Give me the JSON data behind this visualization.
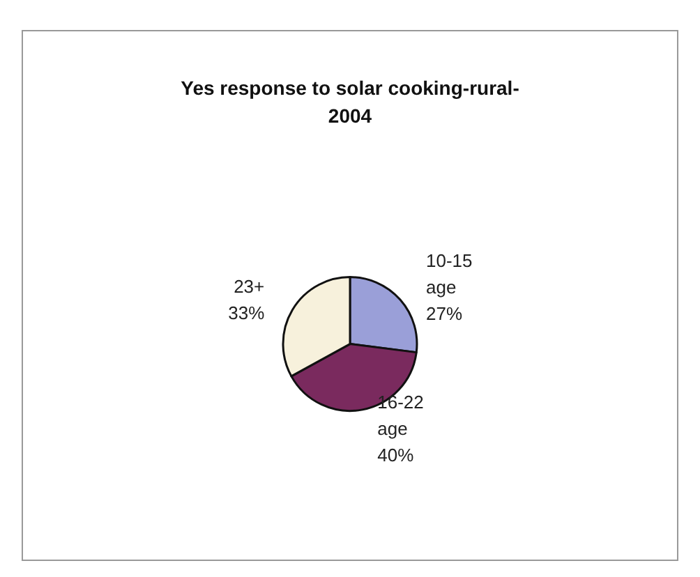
{
  "chart_data": {
    "type": "pie",
    "title": "Yes response to solar cooking-rural-\n2004",
    "categories": [
      "10-15 age",
      "16-22 age",
      "23+"
    ],
    "values": [
      27,
      40,
      33
    ],
    "colors": [
      "#9a9fd8",
      "#7a2a5e",
      "#f7f1dc"
    ],
    "value_labels": [
      "27%",
      "40%",
      "33%"
    ]
  }
}
